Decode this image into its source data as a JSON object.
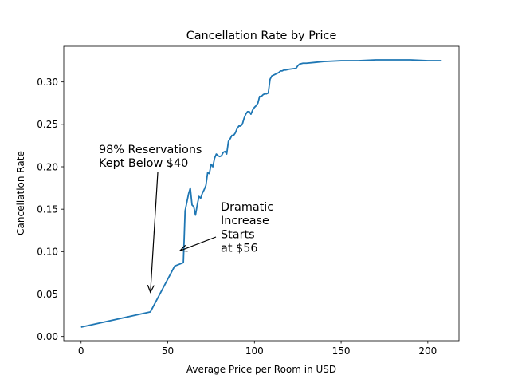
{
  "chart_data": {
    "type": "line",
    "title": "Cancellation Rate by Price",
    "xlabel": "Average Price per Room in USD",
    "ylabel": "Cancellation Rate",
    "xlim": [
      -10,
      218
    ],
    "ylim": [
      -0.005,
      0.342
    ],
    "xticks": [
      0,
      50,
      100,
      150,
      200
    ],
    "yticks": [
      0.0,
      0.05,
      0.1,
      0.15,
      0.2,
      0.25,
      0.3
    ],
    "xtick_labels": [
      "0",
      "50",
      "100",
      "150",
      "200"
    ],
    "ytick_labels": [
      "0.00",
      "0.05",
      "0.10",
      "0.15",
      "0.20",
      "0.25",
      "0.30"
    ],
    "grid": false,
    "colors": {
      "series": "#1f77b4"
    },
    "series": [
      {
        "x": [
          0,
          40,
          54,
          59,
          60,
          61,
          62,
          63,
          64,
          65,
          66,
          67,
          68,
          69,
          70,
          71,
          72,
          73,
          74,
          75,
          76,
          77,
          78,
          79,
          80,
          81,
          82,
          83,
          84,
          85,
          86,
          87,
          88,
          89,
          90,
          91,
          92,
          93,
          94,
          95,
          96,
          97,
          98,
          99,
          100,
          101,
          102,
          103,
          104,
          105,
          106,
          107,
          108,
          109,
          110,
          112,
          114,
          115,
          116,
          117,
          118,
          120,
          124,
          125,
          126,
          128,
          130,
          135,
          140,
          150,
          160,
          170,
          180,
          190,
          200,
          208
        ],
        "y": [
          0.011,
          0.029,
          0.083,
          0.087,
          0.148,
          0.158,
          0.168,
          0.175,
          0.155,
          0.153,
          0.143,
          0.155,
          0.165,
          0.163,
          0.169,
          0.173,
          0.178,
          0.193,
          0.192,
          0.203,
          0.2,
          0.21,
          0.215,
          0.213,
          0.212,
          0.213,
          0.217,
          0.218,
          0.215,
          0.23,
          0.233,
          0.237,
          0.237,
          0.24,
          0.245,
          0.248,
          0.248,
          0.25,
          0.257,
          0.262,
          0.265,
          0.265,
          0.262,
          0.267,
          0.27,
          0.272,
          0.275,
          0.283,
          0.283,
          0.285,
          0.286,
          0.286,
          0.287,
          0.303,
          0.307,
          0.309,
          0.311,
          0.313,
          0.313,
          0.314,
          0.314,
          0.315,
          0.316,
          0.319,
          0.321,
          0.322,
          0.322,
          0.323,
          0.324,
          0.325,
          0.325,
          0.326,
          0.326,
          0.326,
          0.325,
          0.325
        ]
      }
    ],
    "annotations": [
      {
        "lines": [
          "98% Reservations",
          "Kept Below $40"
        ],
        "arrow_to": [
          40,
          0.052
        ]
      },
      {
        "lines": [
          "Dramatic",
          "Increase",
          "Starts",
          "at $56"
        ],
        "arrow_to": [
          57,
          0.101
        ]
      }
    ]
  }
}
